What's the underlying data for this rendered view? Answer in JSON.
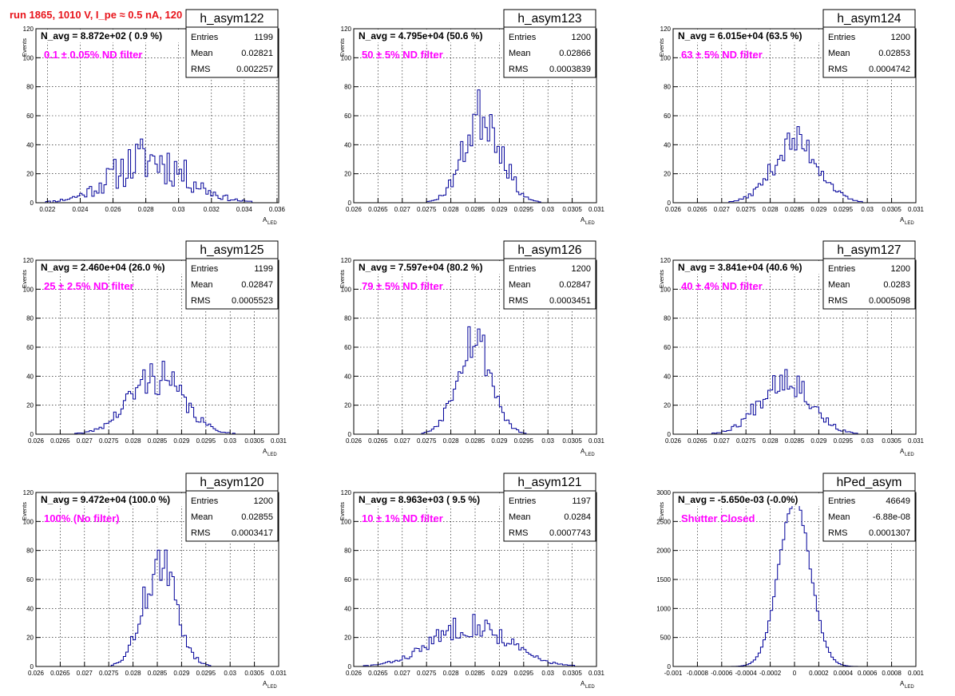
{
  "run_title": "run 1865,  1010 V, I_pe ≈ 0.5 nA, 120 Hz",
  "stats_labels": {
    "entries": "Entries",
    "mean": "Mean",
    "rms": "RMS"
  },
  "y_axis_label": "Events",
  "x_axis_label": "A",
  "x_axis_label_sub": "LED",
  "chart_data": [
    {
      "type": "histogram",
      "name": "h_asym122",
      "n_avg": "N_avg = 8.872e+02 ( 0.9 %)",
      "filter": "0.1 ± 0.05% ND filter",
      "entries": "1199",
      "mean": "0.02821",
      "rms": "0.002257",
      "xlim": [
        0.0213,
        0.0361
      ],
      "ylim": [
        0,
        120
      ],
      "xticks": [
        0.022,
        0.024,
        0.026,
        0.028,
        0.03,
        0.032,
        0.034,
        0.036
      ],
      "xtick_labels": [
        "0.022",
        "0.024",
        "0.026",
        "0.028",
        "0.03",
        "0.032",
        "0.034",
        "0.036"
      ],
      "yticks": [
        0,
        20,
        40,
        60,
        80,
        100,
        120
      ],
      "ytick_labels": [
        "0",
        "20",
        "40",
        "60",
        "80",
        "100",
        "120"
      ],
      "hist": {
        "mean": 0.02821,
        "sigma": 0.00226,
        "peak": 30,
        "noise": 0.38,
        "seed": 11
      }
    },
    {
      "type": "histogram",
      "name": "h_asym123",
      "n_avg": "N_avg = 4.795e+04 (50.6 %)",
      "filter": "50 ± 5% ND filter",
      "entries": "1200",
      "mean": "0.02866",
      "rms": "0.0003839",
      "xlim": [
        0.026,
        0.031
      ],
      "ylim": [
        0,
        120
      ],
      "xticks": [
        0.026,
        0.0265,
        0.027,
        0.0275,
        0.028,
        0.0285,
        0.029,
        0.0295,
        0.03,
        0.0305,
        0.031
      ],
      "xtick_labels": [
        "0.026",
        "0.0265",
        "0.027",
        "0.0275",
        "0.028",
        "0.0285",
        "0.029",
        "0.0295",
        "0.03",
        "0.0305",
        "0.031"
      ],
      "yticks": [
        0,
        20,
        40,
        60,
        80,
        100,
        120
      ],
      "ytick_labels": [
        "0",
        "20",
        "40",
        "60",
        "80",
        "100",
        "120"
      ],
      "hist": {
        "mean": 0.02866,
        "sigma": 0.00038,
        "peak": 62,
        "noise": 0.22,
        "seed": 23
      }
    },
    {
      "type": "histogram",
      "name": "h_asym124",
      "n_avg": "N_avg = 6.015e+04 (63.5 %)",
      "filter": "63 ± 5% ND filter",
      "entries": "1200",
      "mean": "0.02853",
      "rms": "0.0004742",
      "xlim": [
        0.026,
        0.031
      ],
      "ylim": [
        0,
        120
      ],
      "xticks": [
        0.026,
        0.0265,
        0.027,
        0.0275,
        0.028,
        0.0285,
        0.029,
        0.0295,
        0.03,
        0.0305,
        0.031
      ],
      "xtick_labels": [
        "0.026",
        "0.0265",
        "0.027",
        "0.0275",
        "0.028",
        "0.0285",
        "0.029",
        "0.0295",
        "0.03",
        "0.0305",
        "0.031"
      ],
      "yticks": [
        0,
        20,
        40,
        60,
        80,
        100,
        120
      ],
      "ytick_labels": [
        "0",
        "20",
        "40",
        "60",
        "80",
        "100",
        "120"
      ],
      "hist": {
        "mean": 0.02853,
        "sigma": 0.00047,
        "peak": 42,
        "noise": 0.18,
        "seed": 37
      }
    },
    {
      "type": "histogram",
      "name": "h_asym125",
      "n_avg": "N_avg = 2.460e+04 (26.0 %)",
      "filter": "25 ± 2.5% ND filter",
      "entries": "1199",
      "mean": "0.02847",
      "rms": "0.0005523",
      "xlim": [
        0.026,
        0.031
      ],
      "ylim": [
        0,
        120
      ],
      "xticks": [
        0.026,
        0.0265,
        0.027,
        0.0275,
        0.028,
        0.0285,
        0.029,
        0.0295,
        0.03,
        0.0305,
        0.031
      ],
      "xtick_labels": [
        "0.026",
        "0.0265",
        "0.027",
        "0.0275",
        "0.028",
        "0.0285",
        "0.029",
        "0.0295",
        "0.03",
        "0.0305",
        "0.031"
      ],
      "yticks": [
        0,
        20,
        40,
        60,
        80,
        100,
        120
      ],
      "ytick_labels": [
        "0",
        "20",
        "40",
        "60",
        "80",
        "100",
        "120"
      ],
      "hist": {
        "mean": 0.02847,
        "sigma": 0.00055,
        "peak": 40,
        "noise": 0.22,
        "seed": 41
      }
    },
    {
      "type": "histogram",
      "name": "h_asym126",
      "n_avg": "N_avg = 7.597e+04 (80.2 %)",
      "filter": "79 ± 5% ND filter",
      "entries": "1200",
      "mean": "0.02847",
      "rms": "0.0003451",
      "xlim": [
        0.026,
        0.031
      ],
      "ylim": [
        0,
        120
      ],
      "xticks": [
        0.026,
        0.0265,
        0.027,
        0.0275,
        0.028,
        0.0285,
        0.029,
        0.0295,
        0.03,
        0.0305,
        0.031
      ],
      "xtick_labels": [
        "0.026",
        "0.0265",
        "0.027",
        "0.0275",
        "0.028",
        "0.0285",
        "0.029",
        "0.0295",
        "0.03",
        "0.0305",
        "0.031"
      ],
      "yticks": [
        0,
        20,
        40,
        60,
        80,
        100,
        120
      ],
      "ytick_labels": [
        "0",
        "20",
        "40",
        "60",
        "80",
        "100",
        "120"
      ],
      "hist": {
        "mean": 0.02847,
        "sigma": 0.00035,
        "peak": 68,
        "noise": 0.17,
        "seed": 53
      }
    },
    {
      "type": "histogram",
      "name": "h_asym127",
      "n_avg": "N_avg = 3.841e+04 (40.6 %)",
      "filter": "40 ± 4% ND filter",
      "entries": "1200",
      "mean": "0.0283",
      "rms": "0.0005098",
      "xlim": [
        0.026,
        0.031
      ],
      "ylim": [
        0,
        120
      ],
      "xticks": [
        0.026,
        0.0265,
        0.027,
        0.0275,
        0.028,
        0.0285,
        0.029,
        0.0295,
        0.03,
        0.0305,
        0.031
      ],
      "xtick_labels": [
        "0.026",
        "0.0265",
        "0.027",
        "0.0275",
        "0.028",
        "0.0285",
        "0.029",
        "0.0295",
        "0.03",
        "0.0305",
        "0.031"
      ],
      "yticks": [
        0,
        20,
        40,
        60,
        80,
        100,
        120
      ],
      "ytick_labels": [
        "0",
        "20",
        "40",
        "60",
        "80",
        "100",
        "120"
      ],
      "hist": {
        "mean": 0.0283,
        "sigma": 0.00051,
        "peak": 40,
        "noise": 0.2,
        "seed": 67
      }
    },
    {
      "type": "histogram",
      "name": "h_asym120",
      "n_avg": "N_avg = 9.472e+04 (100.0 %)",
      "filter": "100% (No filter)",
      "entries": "1200",
      "mean": "0.02855",
      "rms": "0.0003417",
      "xlim": [
        0.026,
        0.031
      ],
      "ylim": [
        0,
        120
      ],
      "xticks": [
        0.026,
        0.0265,
        0.027,
        0.0275,
        0.028,
        0.0285,
        0.029,
        0.0295,
        0.03,
        0.0305,
        0.031
      ],
      "xtick_labels": [
        "0.026",
        "0.0265",
        "0.027",
        "0.0275",
        "0.028",
        "0.0285",
        "0.029",
        "0.0295",
        "0.03",
        "0.0305",
        "0.031"
      ],
      "yticks": [
        0,
        20,
        40,
        60,
        80,
        100,
        120
      ],
      "ytick_labels": [
        "0",
        "20",
        "40",
        "60",
        "80",
        "100",
        "120"
      ],
      "hist": {
        "mean": 0.02855,
        "sigma": 0.00034,
        "peak": 70,
        "noise": 0.17,
        "seed": 71
      }
    },
    {
      "type": "histogram",
      "name": "h_asym121",
      "n_avg": "N_avg = 8.963e+03 ( 9.5 %)",
      "filter": "10 ± 1% ND filter",
      "entries": "1197",
      "mean": "0.0284",
      "rms": "0.0007743",
      "xlim": [
        0.026,
        0.031
      ],
      "ylim": [
        0,
        120
      ],
      "xticks": [
        0.026,
        0.0265,
        0.027,
        0.0275,
        0.028,
        0.0285,
        0.029,
        0.0295,
        0.03,
        0.0305,
        0.031
      ],
      "xtick_labels": [
        "0.026",
        "0.0265",
        "0.027",
        "0.0275",
        "0.028",
        "0.0285",
        "0.029",
        "0.0295",
        "0.03",
        "0.0305",
        "0.031"
      ],
      "yticks": [
        0,
        20,
        40,
        60,
        80,
        100,
        120
      ],
      "ytick_labels": [
        "0",
        "20",
        "40",
        "60",
        "80",
        "100",
        "120"
      ],
      "hist": {
        "mean": 0.0284,
        "sigma": 0.00077,
        "peak": 29,
        "noise": 0.2,
        "seed": 83
      }
    },
    {
      "type": "histogram",
      "name": "hPed_asym",
      "n_avg": "N_avg = -5.650e-03 (-0.0%)",
      "filter": "Shutter Closed",
      "entries": "46649",
      "mean": "-6.88e-08",
      "rms": "0.0001307",
      "xlim": [
        -0.001,
        0.001
      ],
      "ylim": [
        0,
        3000
      ],
      "xticks": [
        -0.001,
        -0.0008,
        -0.0006,
        -0.0004,
        -0.0002,
        0,
        0.0002,
        0.0004,
        0.0006,
        0.0008,
        0.001
      ],
      "xtick_labels": [
        "-0.001",
        "-0.0008",
        "-0.0006",
        "-0.0004",
        "-0.0002",
        "0",
        "0.0002",
        "0.0004",
        "0.0006",
        "0.0008",
        "0.001"
      ],
      "yticks": [
        0,
        500,
        1000,
        1500,
        2000,
        2500,
        3000
      ],
      "ytick_labels": [
        "0",
        "500",
        "1000",
        "1500",
        "2000",
        "2500",
        "3000"
      ],
      "hist": {
        "mean": 0.0,
        "sigma": 0.00013,
        "peak": 2850,
        "noise": 0.02,
        "seed": 97
      }
    }
  ]
}
